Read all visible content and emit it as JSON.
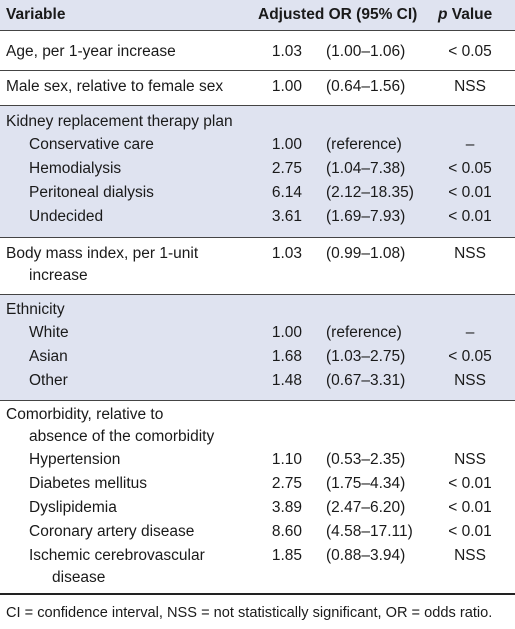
{
  "header": {
    "variable": "Variable",
    "or": "Adjusted OR (95% CI)",
    "p_italic": "p",
    "p_rest": " Value"
  },
  "rows": [
    {
      "label": "Age, per 1-year increase",
      "or": "1.03",
      "ci": "(1.00–1.06)",
      "p": "< 0.05"
    },
    {
      "label": "Male sex, relative to female sex",
      "or": "1.00",
      "ci": "(0.64–1.56)",
      "p": "NSS"
    },
    {
      "label": "Kidney replacement therapy plan"
    },
    {
      "label": "Conservative care",
      "or": "1.00",
      "ci": "(reference)",
      "p": "–"
    },
    {
      "label": "Hemodialysis",
      "or": "2.75",
      "ci": "(1.04–7.38)",
      "p": "< 0.05"
    },
    {
      "label": "Peritoneal dialysis",
      "or": "6.14",
      "ci": "(2.12–18.35)",
      "p": "< 0.01"
    },
    {
      "label": "Undecided",
      "or": "3.61",
      "ci": "(1.69–7.93)",
      "p": "< 0.01"
    },
    {
      "label": "Body mass index, per 1-unit",
      "label2": "increase",
      "or": "1.03",
      "ci": "(0.99–1.08)",
      "p": "NSS"
    },
    {
      "label": "Ethnicity"
    },
    {
      "label": "White",
      "or": "1.00",
      "ci": "(reference)",
      "p": "–"
    },
    {
      "label": "Asian",
      "or": "1.68",
      "ci": "(1.03–2.75)",
      "p": "< 0.05"
    },
    {
      "label": "Other",
      "or": "1.48",
      "ci": "(0.67–3.31)",
      "p": "NSS"
    },
    {
      "label": "Comorbidity, relative to",
      "label2": "absence of the comorbidity"
    },
    {
      "label": "Hypertension",
      "or": "1.10",
      "ci": "(0.53–2.35)",
      "p": "NSS"
    },
    {
      "label": "Diabetes mellitus",
      "or": "2.75",
      "ci": "(1.75–4.34)",
      "p": "< 0.01"
    },
    {
      "label": "Dyslipidemia",
      "or": "3.89",
      "ci": "(2.47–6.20)",
      "p": "< 0.01"
    },
    {
      "label": "Coronary artery disease",
      "or": "8.60",
      "ci": "(4.58–17.11)",
      "p": "< 0.01"
    },
    {
      "label": "Ischemic cerebrovascular",
      "label2": "disease",
      "or": "1.85",
      "ci": "(0.88–3.94)",
      "p": "NSS"
    }
  ],
  "footnote": "CI = confidence interval, NSS = not statistically significant, OR = odds ratio."
}
